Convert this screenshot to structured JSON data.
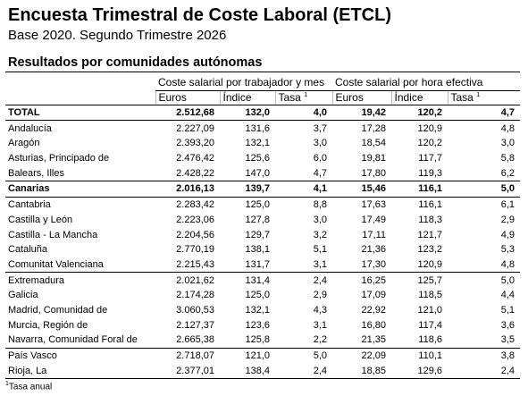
{
  "header": {
    "title": "Encuesta Trimestral de Coste Laboral (ETCL)",
    "subtitle": "Base 2020. Segundo Trimestre 2026"
  },
  "section_title": "Resultados por comunidades autónomas",
  "table": {
    "groups": [
      "Coste salarial por trabajador y mes",
      "Coste salarial por hora efectiva"
    ],
    "columns": [
      {
        "label": "Euros"
      },
      {
        "label": "Índice"
      },
      {
        "label": "Tasa",
        "note": "1"
      },
      {
        "label": "Euros"
      },
      {
        "label": "Índice"
      },
      {
        "label": "Tasa",
        "note": "1"
      }
    ],
    "rows": [
      {
        "cells": [
          "TOTAL",
          "2.512,68",
          "132,0",
          "4,0",
          "19,42",
          "120,2",
          "4,7"
        ],
        "bold": true
      },
      {
        "cells": [
          "Andalucía",
          "2.227,09",
          "131,6",
          "3,7",
          "17,28",
          "120,9",
          "4,8"
        ]
      },
      {
        "cells": [
          "Aragón",
          "2.393,20",
          "132,1",
          "3,0",
          "18,54",
          "120,2",
          "3,0"
        ]
      },
      {
        "cells": [
          "Asturias, Principado de",
          "2.476,42",
          "125,6",
          "6,0",
          "19,81",
          "117,7",
          "5,8"
        ]
      },
      {
        "cells": [
          "Balears, Illes",
          "2.428,22",
          "147,0",
          "4,7",
          "17,80",
          "119,3",
          "6,2"
        ]
      },
      {
        "cells": [
          "Canarias",
          "2.016,13",
          "139,7",
          "4,1",
          "15,46",
          "116,1",
          "5,0"
        ],
        "bold": true
      },
      {
        "cells": [
          "Cantabria",
          "2.283,42",
          "125,0",
          "8,8",
          "17,63",
          "116,1",
          "6,1"
        ]
      },
      {
        "cells": [
          "Castilla y León",
          "2.223,06",
          "127,8",
          "3,0",
          "17,49",
          "118,3",
          "2,9"
        ]
      },
      {
        "cells": [
          "Castilla - La Mancha",
          "2.204,56",
          "129,7",
          "3,2",
          "17,11",
          "121,7",
          "4,9"
        ]
      },
      {
        "cells": [
          "Cataluña",
          "2.770,19",
          "138,1",
          "5,1",
          "21,36",
          "123,2",
          "5,3"
        ]
      },
      {
        "cells": [
          "Comunitat Valenciana",
          "2.215,43",
          "131,7",
          "3,1",
          "17,30",
          "120,9",
          "4,8"
        ]
      },
      {
        "cells": [
          "Extremadura",
          "2.021,62",
          "131,4",
          "2,4",
          "16,25",
          "125,7",
          "5,0"
        ]
      },
      {
        "cells": [
          "Galicia",
          "2.174,28",
          "125,0",
          "2,9",
          "17,09",
          "118,5",
          "4,4"
        ]
      },
      {
        "cells": [
          "Madrid, Comunidad de",
          "3.060,53",
          "132,1",
          "4,3",
          "22,92",
          "121,0",
          "5,1"
        ]
      },
      {
        "cells": [
          "Murcia, Región de",
          "2.127,37",
          "123,6",
          "3,1",
          "16,80",
          "117,4",
          "3,6"
        ]
      },
      {
        "cells": [
          "Navarra, Comunidad Foral de",
          "2.665,38",
          "125,8",
          "2,2",
          "21,35",
          "118,6",
          "3,5"
        ]
      },
      {
        "cells": [
          "País Vasco",
          "2.718,07",
          "121,0",
          "5,0",
          "22,09",
          "110,1",
          "3,8"
        ]
      },
      {
        "cells": [
          "Rioja, La",
          "2.377,01",
          "138,4",
          "2,4",
          "18,85",
          "129,6",
          "2,4"
        ]
      }
    ]
  },
  "footnote": {
    "mark": "1",
    "text": "Tasa anual"
  }
}
